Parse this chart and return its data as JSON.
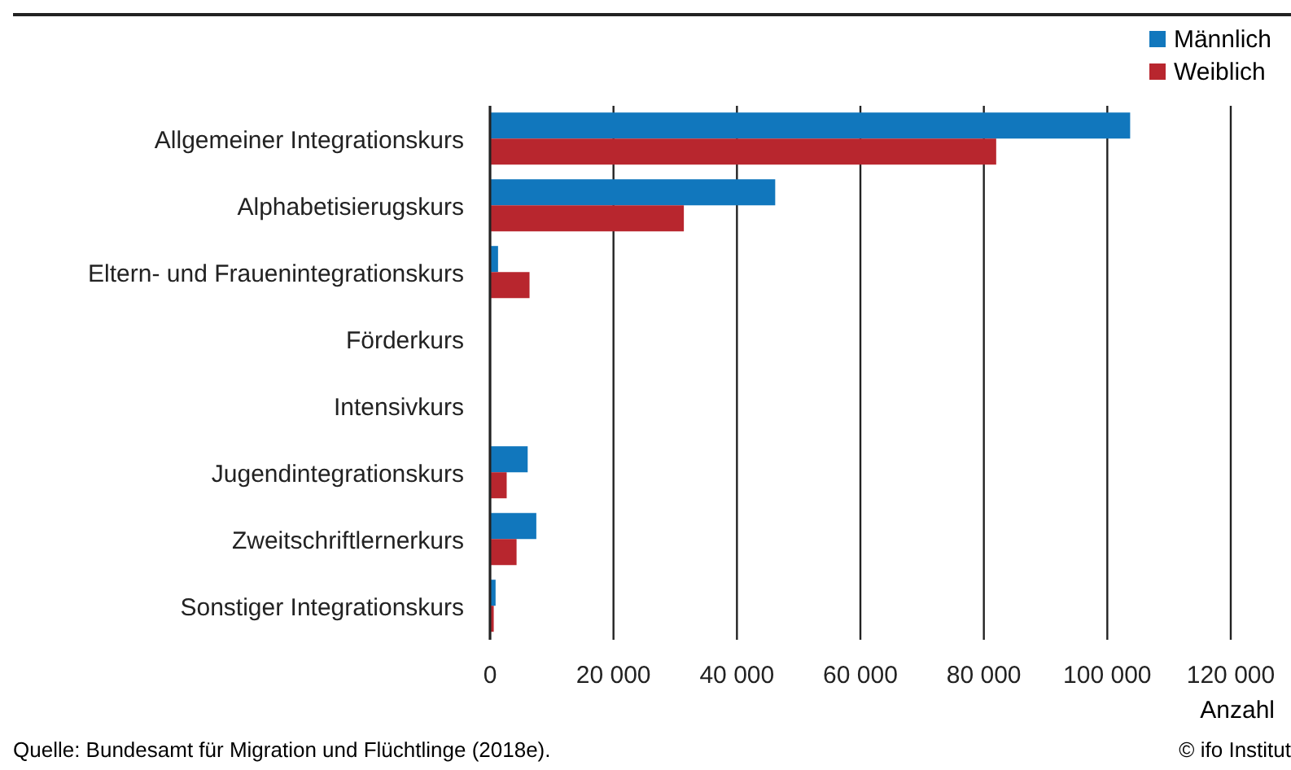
{
  "chart_data": {
    "type": "bar",
    "orientation": "horizontal",
    "categories": [
      "Allgemeiner Integrationskurs",
      "Alphabetisierugskurs",
      "Eltern- und Frauenintegrationskurs",
      "Förderkurs",
      "Intensivkurs",
      "Jugendintegrationskurs",
      "Zweitschriftlernerkurs",
      "Sonstiger Integrationskurs"
    ],
    "series": [
      {
        "name": "Männlich",
        "color": "#1177bd",
        "values": [
          103700,
          46200,
          1300,
          null,
          null,
          6100,
          7500,
          900
        ]
      },
      {
        "name": "Weiblich",
        "color": "#b8262e",
        "values": [
          82000,
          31400,
          6400,
          null,
          null,
          2700,
          4300,
          600
        ]
      }
    ],
    "xlim": [
      0,
      120000
    ],
    "xticks": [
      {
        "value": 0,
        "label": "0"
      },
      {
        "value": 20000,
        "label": "20 000"
      },
      {
        "value": 40000,
        "label": "40 000"
      },
      {
        "value": 60000,
        "label": "60 000"
      },
      {
        "value": 80000,
        "label": "80 000"
      },
      {
        "value": 100000,
        "label": "100 000"
      },
      {
        "value": 120000,
        "label": "120 000"
      }
    ],
    "xlabel": "Anzahl",
    "grid": "x",
    "legend": "top right",
    "annotations": [
      "Quelle: Bundesamt für Migration und Flüchtlinge (2018e).",
      "© ifo Institut"
    ]
  }
}
